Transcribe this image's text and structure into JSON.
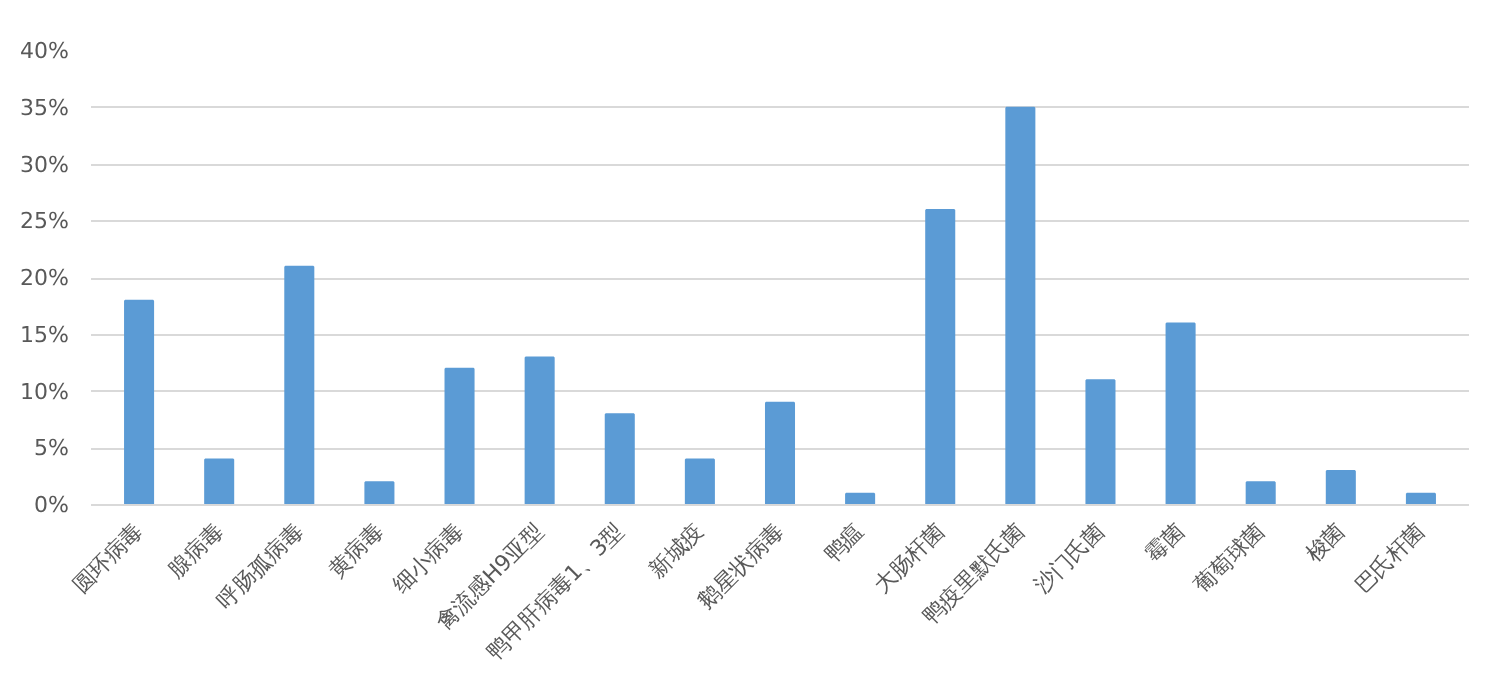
{
  "chart_data": {
    "type": "bar",
    "categories": [
      "圆环病毒",
      "腺病毒",
      "呼肠孤病毒",
      "黄病毒",
      "细小病毒",
      "禽流感H9亚型",
      "鸭甲肝病毒1、3型",
      "新城疫",
      "鹅星状病毒",
      "鸭瘟",
      "大肠杆菌",
      "鸭疫里默氏菌",
      "沙门氏菌",
      "霉菌",
      "葡萄球菌",
      "梭菌",
      "巴氏杆菌"
    ],
    "values": [
      18,
      4,
      21,
      2,
      12,
      13,
      8,
      4,
      9,
      1,
      26,
      35,
      11,
      16,
      2,
      3,
      1
    ],
    "color": "#5b9bd5",
    "ylim": [
      0,
      40
    ],
    "yticks": [
      {
        "value": 0,
        "label": "0%"
      },
      {
        "value": 5,
        "label": "5%"
      },
      {
        "value": 10,
        "label": "10%"
      },
      {
        "value": 15,
        "label": "15%"
      },
      {
        "value": 20,
        "label": "20%"
      },
      {
        "value": 25,
        "label": "25%"
      },
      {
        "value": 30,
        "label": "30%"
      },
      {
        "value": 35,
        "label": "35%"
      },
      {
        "value": 40,
        "label": "40%"
      }
    ],
    "grid": "y"
  }
}
